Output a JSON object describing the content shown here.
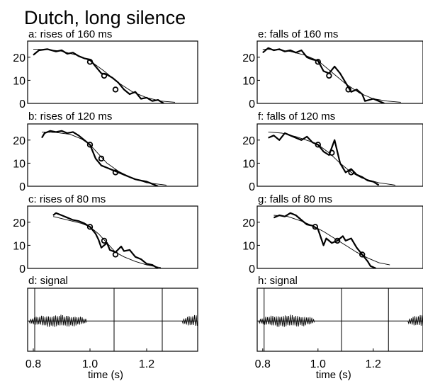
{
  "figure_title": "Dutch, long silence",
  "x_axis": {
    "label": "time (s)",
    "ticks": [
      0.8,
      1.0,
      1.2
    ],
    "tick_labels": [
      "0.8",
      "1.0",
      "1.2"
    ],
    "range": [
      0.78,
      1.38
    ]
  },
  "chart_data": [
    {
      "id": "a",
      "type": "line",
      "title": "a: rises of 160 ms",
      "ylim": [
        0,
        27
      ],
      "yticks": [
        0,
        10,
        20
      ],
      "series": [
        {
          "style": "thick",
          "points": [
            [
              0.8,
              21
            ],
            [
              0.82,
              23
            ],
            [
              0.85,
              23.5
            ],
            [
              0.88,
              22.5
            ],
            [
              0.9,
              23
            ],
            [
              0.92,
              21.5
            ],
            [
              0.94,
              22
            ],
            [
              0.96,
              20.5
            ],
            [
              0.98,
              19.5
            ],
            [
              1.0,
              19
            ],
            [
              1.02,
              16
            ],
            [
              1.04,
              13
            ],
            [
              1.06,
              12.5
            ],
            [
              1.08,
              11
            ],
            [
              1.1,
              9
            ],
            [
              1.12,
              6
            ],
            [
              1.14,
              4
            ],
            [
              1.16,
              5
            ],
            [
              1.18,
              2
            ],
            [
              1.2,
              2.5
            ],
            [
              1.22,
              1
            ],
            [
              1.24,
              1.5
            ],
            [
              1.26,
              0
            ]
          ]
        },
        {
          "style": "thin",
          "points": [
            [
              0.8,
              23.5
            ],
            [
              0.85,
              23.3
            ],
            [
              0.9,
              22.6
            ],
            [
              0.95,
              21
            ],
            [
              1.0,
              18.5
            ],
            [
              1.05,
              14
            ],
            [
              1.1,
              9
            ],
            [
              1.15,
              5
            ],
            [
              1.2,
              2.5
            ],
            [
              1.25,
              1
            ],
            [
              1.3,
              0.5
            ]
          ]
        }
      ],
      "markers": [
        [
          1.0,
          18
        ],
        [
          1.05,
          12
        ],
        [
          1.09,
          6
        ]
      ]
    },
    {
      "id": "b",
      "type": "line",
      "title": "b: rises of 120 ms",
      "ylim": [
        0,
        27
      ],
      "yticks": [
        0,
        10,
        20
      ],
      "series": [
        {
          "style": "thick",
          "points": [
            [
              0.83,
              21
            ],
            [
              0.84,
              23
            ],
            [
              0.86,
              24
            ],
            [
              0.88,
              23.5
            ],
            [
              0.9,
              24
            ],
            [
              0.92,
              23
            ],
            [
              0.94,
              23.5
            ],
            [
              0.96,
              22
            ],
            [
              0.98,
              20
            ],
            [
              1.0,
              18
            ],
            [
              1.02,
              12
            ],
            [
              1.04,
              9
            ],
            [
              1.06,
              8
            ],
            [
              1.08,
              7
            ],
            [
              1.1,
              6
            ],
            [
              1.12,
              5
            ],
            [
              1.14,
              4
            ],
            [
              1.16,
              3
            ],
            [
              1.18,
              2.5
            ],
            [
              1.2,
              2
            ],
            [
              1.22,
              1
            ],
            [
              1.24,
              0
            ]
          ]
        },
        {
          "style": "thin",
          "points": [
            [
              0.83,
              23.5
            ],
            [
              0.88,
              23.3
            ],
            [
              0.93,
              22.5
            ],
            [
              0.97,
              20.5
            ],
            [
              1.0,
              18
            ],
            [
              1.03,
              14
            ],
            [
              1.06,
              10
            ],
            [
              1.1,
              6.5
            ],
            [
              1.15,
              3.5
            ],
            [
              1.2,
              1.5
            ],
            [
              1.27,
              0.5
            ]
          ]
        }
      ],
      "markers": [
        [
          1.0,
          18
        ],
        [
          1.04,
          12
        ],
        [
          1.09,
          6
        ]
      ]
    },
    {
      "id": "c",
      "type": "line",
      "title": "c: rises of  80 ms",
      "ylim": [
        0,
        27
      ],
      "yticks": [
        0,
        10,
        20
      ],
      "series": [
        {
          "style": "thick",
          "points": [
            [
              0.87,
              23
            ],
            [
              0.88,
              24
            ],
            [
              0.9,
              23
            ],
            [
              0.92,
              22
            ],
            [
              0.94,
              21
            ],
            [
              0.96,
              20.5
            ],
            [
              0.98,
              19.5
            ],
            [
              1.0,
              18
            ],
            [
              1.02,
              15
            ],
            [
              1.03,
              12.5
            ],
            [
              1.04,
              9
            ],
            [
              1.06,
              11
            ],
            [
              1.07,
              8
            ],
            [
              1.09,
              7
            ],
            [
              1.11,
              9.5
            ],
            [
              1.12,
              7.5
            ],
            [
              1.14,
              8
            ],
            [
              1.16,
              5
            ],
            [
              1.18,
              4
            ],
            [
              1.2,
              2
            ],
            [
              1.22,
              1.5
            ],
            [
              1.24,
              0
            ]
          ]
        },
        {
          "style": "thin",
          "points": [
            [
              0.87,
              22.5
            ],
            [
              0.92,
              21
            ],
            [
              0.97,
              19.5
            ],
            [
              1.0,
              18
            ],
            [
              1.03,
              15
            ],
            [
              1.06,
              11
            ],
            [
              1.09,
              7
            ],
            [
              1.12,
              5
            ],
            [
              1.16,
              3
            ],
            [
              1.2,
              1.5
            ],
            [
              1.25,
              0.3
            ]
          ]
        }
      ],
      "markers": [
        [
          1.0,
          18
        ],
        [
          1.05,
          12
        ],
        [
          1.09,
          6
        ]
      ]
    },
    {
      "id": "d",
      "type": "line",
      "title": "d: signal",
      "signal_span": [
        0.78,
        1.38
      ],
      "gap": [
        0.99,
        1.325
      ],
      "vlines": [
        0.805,
        1.085,
        1.255
      ]
    },
    {
      "id": "e",
      "type": "line",
      "title": "e: falls of 160 ms",
      "ylim": [
        0,
        27
      ],
      "yticks": [
        0,
        10,
        20
      ],
      "series": [
        {
          "style": "thick",
          "points": [
            [
              0.8,
              22
            ],
            [
              0.82,
              24
            ],
            [
              0.84,
              23
            ],
            [
              0.86,
              23.5
            ],
            [
              0.88,
              22.5
            ],
            [
              0.9,
              23
            ],
            [
              0.92,
              22
            ],
            [
              0.94,
              23
            ],
            [
              0.96,
              20
            ],
            [
              0.98,
              19
            ],
            [
              1.0,
              18.5
            ],
            [
              1.02,
              14
            ],
            [
              1.04,
              13
            ],
            [
              1.06,
              16
            ],
            [
              1.08,
              13
            ],
            [
              1.1,
              9
            ],
            [
              1.12,
              5
            ],
            [
              1.14,
              6
            ],
            [
              1.16,
              4
            ],
            [
              1.17,
              1
            ],
            [
              1.2,
              2
            ],
            [
              1.22,
              1
            ],
            [
              1.24,
              0
            ]
          ]
        },
        {
          "style": "thin",
          "points": [
            [
              0.8,
              23.5
            ],
            [
              0.85,
              23.3
            ],
            [
              0.9,
              22.5
            ],
            [
              0.95,
              21
            ],
            [
              1.0,
              18.5
            ],
            [
              1.05,
              13.5
            ],
            [
              1.1,
              8.5
            ],
            [
              1.15,
              4.5
            ],
            [
              1.2,
              2
            ],
            [
              1.25,
              1
            ],
            [
              1.3,
              0.5
            ]
          ]
        }
      ],
      "markers": [
        [
          1.0,
          18
        ],
        [
          1.04,
          12
        ],
        [
          1.11,
          6
        ]
      ]
    },
    {
      "id": "f",
      "type": "line",
      "title": "f: falls of 120 ms",
      "ylim": [
        0,
        27
      ],
      "yticks": [
        0,
        10,
        20
      ],
      "series": [
        {
          "style": "thick",
          "points": [
            [
              0.82,
              21
            ],
            [
              0.84,
              22
            ],
            [
              0.86,
              20
            ],
            [
              0.88,
              23
            ],
            [
              0.9,
              22
            ],
            [
              0.92,
              21
            ],
            [
              0.94,
              20
            ],
            [
              0.96,
              21.5
            ],
            [
              0.98,
              19
            ],
            [
              1.0,
              18
            ],
            [
              1.02,
              15
            ],
            [
              1.04,
              13.5
            ],
            [
              1.06,
              20
            ],
            [
              1.08,
              10
            ],
            [
              1.1,
              6
            ],
            [
              1.12,
              7.5
            ],
            [
              1.14,
              5
            ],
            [
              1.16,
              4
            ],
            [
              1.18,
              2.5
            ],
            [
              1.2,
              2
            ],
            [
              1.22,
              0.5
            ]
          ]
        },
        {
          "style": "thin",
          "points": [
            [
              0.82,
              23.5
            ],
            [
              0.87,
              23
            ],
            [
              0.92,
              21.5
            ],
            [
              0.97,
              19.5
            ],
            [
              1.0,
              18
            ],
            [
              1.04,
              14.5
            ],
            [
              1.08,
              10
            ],
            [
              1.12,
              6
            ],
            [
              1.16,
              3.5
            ],
            [
              1.22,
              1.5
            ],
            [
              1.28,
              0.5
            ]
          ]
        }
      ],
      "markers": [
        [
          1.0,
          18
        ],
        [
          1.05,
          14.5
        ],
        [
          1.12,
          6
        ]
      ]
    },
    {
      "id": "g",
      "type": "line",
      "title": "g: falls of  80 ms",
      "ylim": [
        0,
        27
      ],
      "yticks": [
        0,
        10,
        20
      ],
      "series": [
        {
          "style": "thick",
          "points": [
            [
              0.84,
              22
            ],
            [
              0.86,
              23
            ],
            [
              0.88,
              22.5
            ],
            [
              0.9,
              24
            ],
            [
              0.92,
              23
            ],
            [
              0.94,
              21
            ],
            [
              0.96,
              19
            ],
            [
              0.98,
              18.5
            ],
            [
              1.0,
              17
            ],
            [
              1.02,
              10
            ],
            [
              1.03,
              13
            ],
            [
              1.05,
              11
            ],
            [
              1.07,
              12
            ],
            [
              1.09,
              14
            ],
            [
              1.1,
              12
            ],
            [
              1.12,
              13
            ],
            [
              1.14,
              9
            ],
            [
              1.16,
              6
            ],
            [
              1.18,
              3
            ],
            [
              1.19,
              1
            ],
            [
              1.21,
              0
            ]
          ]
        },
        {
          "style": "thin",
          "points": [
            [
              0.84,
              23
            ],
            [
              0.89,
              22.5
            ],
            [
              0.94,
              20.5
            ],
            [
              0.98,
              18.5
            ],
            [
              1.02,
              16
            ],
            [
              1.06,
              13
            ],
            [
              1.1,
              10
            ],
            [
              1.14,
              7
            ],
            [
              1.18,
              4.5
            ],
            [
              1.22,
              2.5
            ],
            [
              1.26,
              1.5
            ]
          ]
        }
      ],
      "markers": [
        [
          0.99,
          18
        ],
        [
          1.07,
          12
        ],
        [
          1.16,
          6
        ]
      ]
    },
    {
      "id": "h",
      "type": "line",
      "title": "h: signal",
      "signal_span": [
        0.78,
        1.38
      ],
      "gap": [
        0.99,
        1.325
      ],
      "vlines": [
        0.805,
        1.085,
        1.255
      ]
    }
  ]
}
